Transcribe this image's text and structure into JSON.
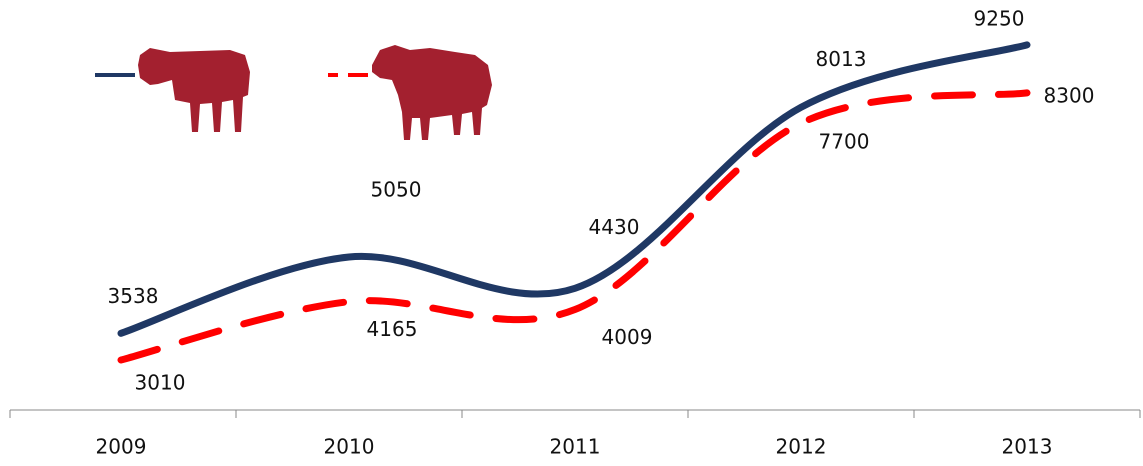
{
  "chart_data": {
    "type": "line",
    "categories": [
      "2009",
      "2010",
      "2011",
      "2012",
      "2013"
    ],
    "series": [
      {
        "color": "#1f3864",
        "values": [
          3538,
          5050,
          4430,
          8013,
          9250
        ]
      },
      {
        "color": "#ff0000",
        "values": [
          3010,
          4165,
          4009,
          7700,
          8300
        ],
        "dashed": true
      }
    ],
    "ylim": [
      2000,
      10000
    ]
  }
}
